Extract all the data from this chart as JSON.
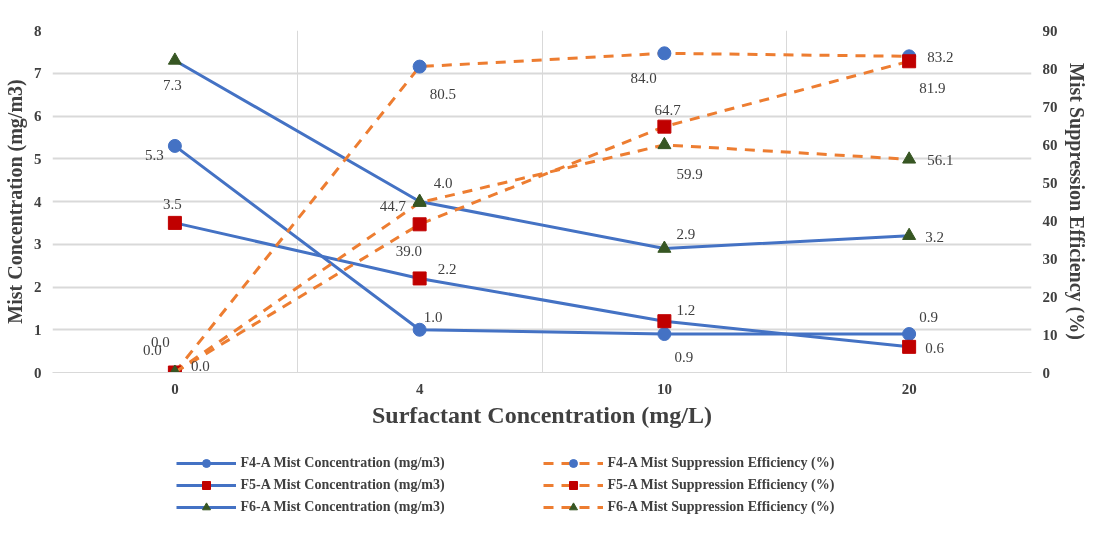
{
  "chart_data": {
    "type": "line",
    "xlabel": "Surfactant Concentration (mg/L)",
    "ylabel": "Mist Concentration (mg/m3)",
    "y2label": "Mist Suppression Efficiency (%)",
    "categories": [
      "0",
      "4",
      "10",
      "20"
    ],
    "ylim": [
      0,
      8
    ],
    "yticks": [
      0,
      1,
      2,
      3,
      4,
      5,
      6,
      7,
      8
    ],
    "y2lim": [
      0,
      90
    ],
    "y2ticks": [
      0,
      10,
      20,
      30,
      40,
      50,
      60,
      70,
      80,
      90
    ],
    "grid": true,
    "legend": "bottom",
    "data_labels": true,
    "series": [
      {
        "name": "F4-A Mist Concentration (mg/m3)",
        "color": "#4472c4",
        "colors": [
          "#4472c4",
          "#4472c4",
          "#4472c4",
          "#4472c4"
        ],
        "marker": "circle",
        "line_style": "solid",
        "values": [
          5.3,
          1.0,
          0.9,
          0.9
        ],
        "value_labels": [
          "5.3",
          "1.0",
          "0.9",
          "0.9"
        ]
      },
      {
        "name": "F5-A Mist Concentration (mg/m3)",
        "color": "#4472c4",
        "colors": [
          "#c00000",
          "#c00000",
          "#c00000",
          "#c00000"
        ],
        "marker": "square",
        "line_style": "solid",
        "values": [
          3.5,
          2.2,
          1.2,
          0.6
        ],
        "value_labels": [
          "3.5",
          "2.2",
          "1.2",
          "0.6"
        ]
      },
      {
        "name": "F6-A Mist Concentration (mg/m3)",
        "color": "#4472c4",
        "colors": [
          "#375623",
          "#375623",
          "#375623",
          "#375623"
        ],
        "marker": "triangle",
        "line_style": "solid",
        "values": [
          7.3,
          4.0,
          2.9,
          3.2
        ],
        "value_labels": [
          "7.3",
          "4.0",
          "2.9",
          "3.2"
        ]
      },
      {
        "name": "F4-A Mist Suppression Efficiency (%)",
        "color": "#ed7d31",
        "colors": [
          "#4472c4",
          "#4472c4",
          "#4472c4",
          "#4472c4"
        ],
        "marker": "circle",
        "line_style": "dashed",
        "axis": "y2",
        "values": [
          0.0,
          80.5,
          84.0,
          83.2
        ],
        "value_labels": [
          "0.0",
          "80.5",
          "84.0",
          "83.2"
        ]
      },
      {
        "name": "F5-A Mist Suppression Efficiency (%)",
        "color": "#ed7d31",
        "colors": [
          "#c00000",
          "#c00000",
          "#c00000",
          "#c00000"
        ],
        "marker": "square",
        "line_style": "dashed",
        "axis": "y2",
        "values": [
          0.0,
          39.0,
          64.7,
          81.9
        ],
        "value_labels": [
          "0.0",
          "39.0",
          "64.7",
          "81.9"
        ]
      },
      {
        "name": "F6-A Mist Suppression Efficiency (%)",
        "color": "#ed7d31",
        "colors": [
          "#375623",
          "#375623",
          "#375623",
          "#375623"
        ],
        "marker": "triangle",
        "line_style": "dashed",
        "axis": "y2",
        "values": [
          0.0,
          44.7,
          59.9,
          56.1
        ],
        "value_labels": [
          "0.0",
          "44.7",
          "59.9",
          "56.1"
        ]
      }
    ]
  }
}
